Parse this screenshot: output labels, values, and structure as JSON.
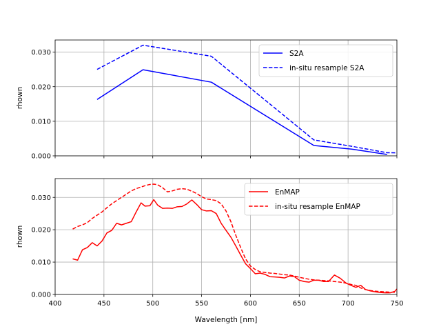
{
  "chart_data": [
    {
      "type": "line",
      "ylabel": "rhown",
      "xlim": [
        400,
        750
      ],
      "ylim": [
        0,
        0.0335
      ],
      "yticks": [
        0.0,
        0.01,
        0.02,
        0.03
      ],
      "ytick_labels": [
        "0.000",
        "0.010",
        "0.020",
        "0.030"
      ],
      "grid": true,
      "legend": "top-right",
      "series": [
        {
          "name": "S2A",
          "style": "solid",
          "color": "#0000ff",
          "x": [
            443,
            490,
            560,
            665,
            705,
            740
          ],
          "y": [
            0.0163,
            0.0249,
            0.0213,
            0.003,
            0.0019,
            0.0004
          ]
        },
        {
          "name": "in-situ resample S2A",
          "style": "dashed",
          "color": "#0000ff",
          "x": [
            443,
            490,
            560,
            665,
            705,
            740,
            783
          ],
          "y": [
            0.025,
            0.032,
            0.0288,
            0.0046,
            0.0027,
            0.0009,
            0.0008
          ]
        }
      ]
    },
    {
      "type": "line",
      "xlabel": "Wavelength [nm]",
      "ylabel": "rhown",
      "xlim": [
        400,
        750
      ],
      "ylim": [
        0,
        0.0358
      ],
      "xticks": [
        400,
        450,
        500,
        550,
        600,
        650,
        700,
        750
      ],
      "xtick_labels": [
        "400",
        "450",
        "500",
        "550",
        "600",
        "650",
        "700",
        "750"
      ],
      "yticks": [
        0.0,
        0.01,
        0.02,
        0.03
      ],
      "ytick_labels": [
        "0.000",
        "0.010",
        "0.020",
        "0.030"
      ],
      "grid": true,
      "legend": "top-right",
      "series": [
        {
          "name": "EnMAP",
          "style": "solid",
          "color": "#ff0000",
          "x": [
            418,
            423,
            428,
            433,
            438,
            443,
            448,
            453,
            458,
            463,
            468,
            473,
            478,
            483,
            488,
            492,
            497,
            501,
            505,
            510,
            515,
            520,
            525,
            530,
            535,
            540,
            545,
            550,
            555,
            560,
            565,
            570,
            575,
            580,
            585,
            590,
            595,
            600,
            605,
            610,
            615,
            620,
            625,
            630,
            635,
            640,
            645,
            650,
            655,
            660,
            665,
            670,
            675,
            680,
            686,
            692,
            698,
            703,
            708,
            713,
            718,
            723,
            728,
            733,
            738,
            743,
            748,
            750
          ],
          "y": [
            0.011,
            0.0106,
            0.0138,
            0.0145,
            0.016,
            0.015,
            0.0165,
            0.019,
            0.0198,
            0.022,
            0.0215,
            0.022,
            0.0225,
            0.0255,
            0.0283,
            0.0273,
            0.0274,
            0.0293,
            0.0276,
            0.0266,
            0.0267,
            0.0266,
            0.0271,
            0.0272,
            0.028,
            0.0292,
            0.0278,
            0.0262,
            0.0258,
            0.0259,
            0.025,
            0.022,
            0.0198,
            0.0177,
            0.015,
            0.0122,
            0.0095,
            0.008,
            0.0064,
            0.0066,
            0.0062,
            0.0055,
            0.0054,
            0.0053,
            0.0051,
            0.0057,
            0.0055,
            0.0044,
            0.004,
            0.0038,
            0.0044,
            0.0044,
            0.004,
            0.004,
            0.006,
            0.005,
            0.0035,
            0.0028,
            0.0022,
            0.0028,
            0.0015,
            0.0011,
            0.0008,
            0.0006,
            0.0005,
            0.0005,
            0.001,
            0.0017
          ]
        },
        {
          "name": "in-situ resample EnMAP",
          "style": "dashed",
          "color": "#ff0000",
          "x": [
            418,
            423,
            428,
            433,
            438,
            443,
            448,
            453,
            458,
            463,
            468,
            473,
            478,
            483,
            488,
            492,
            497,
            501,
            505,
            510,
            515,
            520,
            525,
            530,
            535,
            540,
            545,
            550,
            555,
            560,
            565,
            570,
            575,
            580,
            585,
            590,
            595,
            600,
            605,
            610,
            615,
            620,
            625,
            630,
            635,
            640,
            645,
            650,
            655,
            660,
            665,
            670,
            675,
            680,
            686,
            692,
            698,
            703,
            708,
            713,
            718,
            723,
            728,
            733,
            738,
            743,
            748,
            750
          ],
          "y": [
            0.0202,
            0.021,
            0.0215,
            0.0222,
            0.0235,
            0.0245,
            0.0255,
            0.0268,
            0.028,
            0.029,
            0.03,
            0.031,
            0.032,
            0.0327,
            0.0332,
            0.0336,
            0.034,
            0.0341,
            0.0339,
            0.033,
            0.0317,
            0.032,
            0.0325,
            0.0327,
            0.0325,
            0.0319,
            0.0312,
            0.0302,
            0.0295,
            0.0293,
            0.029,
            0.028,
            0.0258,
            0.0225,
            0.0183,
            0.0145,
            0.011,
            0.0088,
            0.0077,
            0.007,
            0.0068,
            0.0066,
            0.0065,
            0.0063,
            0.0061,
            0.006,
            0.0057,
            0.0053,
            0.005,
            0.0047,
            0.0045,
            0.0044,
            0.0043,
            0.0042,
            0.004,
            0.0038,
            0.0035,
            0.0031,
            0.0028,
            0.002,
            0.0015,
            0.0012,
            0.001,
            0.0009,
            0.0008,
            0.0007,
            0.0007,
            0.0008
          ]
        }
      ]
    }
  ]
}
